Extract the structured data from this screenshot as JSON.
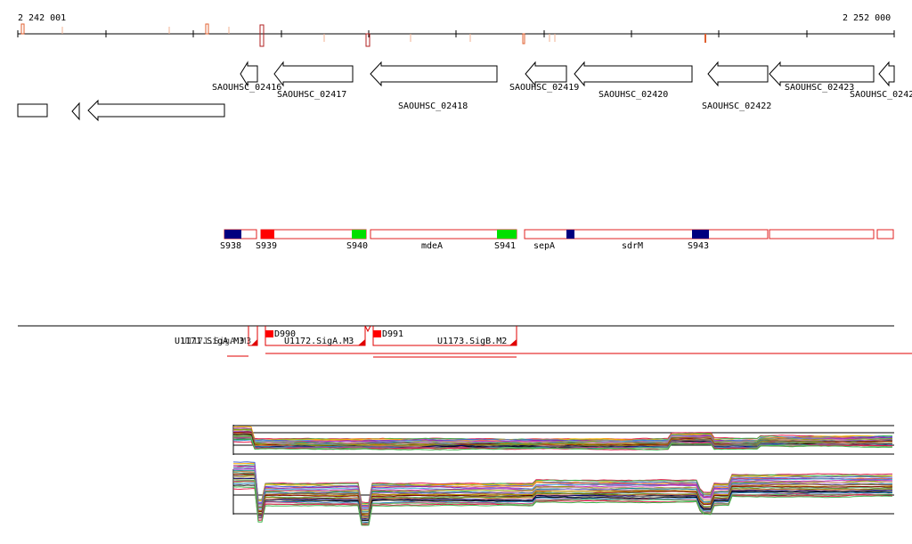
{
  "ruler": {
    "start_label": "2 242 001",
    "end_label": "2 252 000"
  },
  "genes": [
    {
      "label": "SAOUHSC_02416"
    },
    {
      "label": "SAOUHSC_02417"
    },
    {
      "label": "SAOUHSC_02418"
    },
    {
      "label": "SAOUHSC_02419"
    },
    {
      "label": "SAOUHSC_02420"
    },
    {
      "label": "SAOUHSC_02422"
    },
    {
      "label": "SAOUHSC_02423"
    },
    {
      "label": "SAOUHSC_0242"
    }
  ],
  "segments": [
    {
      "label": "S938"
    },
    {
      "label": "S939"
    },
    {
      "label": "S940"
    },
    {
      "label": "mdeA"
    },
    {
      "label": "S941"
    },
    {
      "label": "sepA"
    },
    {
      "label": "sdrM"
    },
    {
      "label": "S943"
    }
  ],
  "transcripts": [
    {
      "label": "U1171.SigA.M3"
    },
    {
      "label": "D990"
    },
    {
      "label": "U1172.SigA.M3"
    },
    {
      "label": "D991"
    },
    {
      "label": "U1173.SigB.M2"
    }
  ],
  "colors": {
    "segment_outline": "#e02020",
    "blue_marker": "#00007f",
    "red_marker": "#ff0000",
    "green_marker": "#00e000",
    "transcript_line": "#e00000",
    "ruler_feature": "#e06030"
  }
}
